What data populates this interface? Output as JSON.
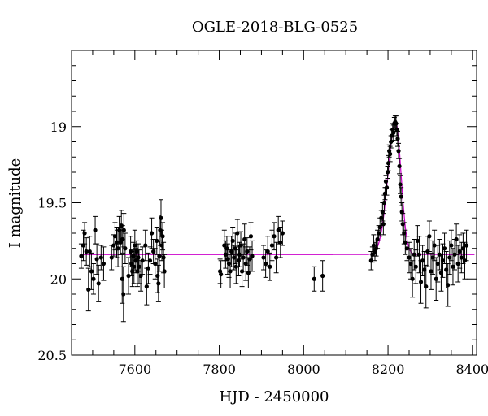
{
  "chart_data": {
    "type": "scatter",
    "title": "OGLE-2018-BLG-0525",
    "xlabel": "HJD - 2450000",
    "ylabel": "I magnitude",
    "xlim": [
      7450,
      8410
    ],
    "ylim": [
      18.5,
      20.5
    ],
    "y_inverted": true,
    "grid": false,
    "x_ticks": [
      7600,
      7800,
      8000,
      8200,
      8400
    ],
    "x_tick_labels": [
      "7600",
      "7800",
      "8000",
      "8200",
      "8400"
    ],
    "y_ticks": [
      19,
      19.5,
      20,
      20.5
    ],
    "y_tick_labels": [
      "19",
      "19.5",
      "20",
      "20.5"
    ],
    "colors": {
      "points": "#000000",
      "model": "#cc00cc"
    },
    "model": {
      "baseline": 19.84,
      "peak_time": 8218,
      "peak_mag": 18.97,
      "rise_width": 18,
      "fall_width": 13
    },
    "series": [
      {
        "values": [
          {
            "x": 7473,
            "y": 19.85,
            "e": 0.08
          },
          {
            "x": 7478,
            "y": 19.78,
            "e": 0.1
          },
          {
            "x": 7481,
            "y": 19.7,
            "e": 0.07
          },
          {
            "x": 7485,
            "y": 19.82,
            "e": 0.09
          },
          {
            "x": 7490,
            "y": 20.07,
            "e": 0.14
          },
          {
            "x": 7493,
            "y": 19.82,
            "e": 0.1
          },
          {
            "x": 7497,
            "y": 19.95,
            "e": 0.12
          },
          {
            "x": 7502,
            "y": 20.0,
            "e": 0.1
          },
          {
            "x": 7506,
            "y": 19.68,
            "e": 0.09
          },
          {
            "x": 7510,
            "y": 19.87,
            "e": 0.1
          },
          {
            "x": 7514,
            "y": 20.03,
            "e": 0.12
          },
          {
            "x": 7520,
            "y": 19.86,
            "e": 0.08
          },
          {
            "x": 7526,
            "y": 19.9,
            "e": 0.11
          },
          {
            "x": 7545,
            "y": 19.86,
            "e": 0.08
          },
          {
            "x": 7550,
            "y": 19.78,
            "e": 0.07
          },
          {
            "x": 7553,
            "y": 19.72,
            "e": 0.09
          },
          {
            "x": 7557,
            "y": 19.76,
            "e": 0.1
          },
          {
            "x": 7560,
            "y": 19.8,
            "e": 0.12
          },
          {
            "x": 7563,
            "y": 19.68,
            "e": 0.09
          },
          {
            "x": 7566,
            "y": 19.76,
            "e": 0.08
          },
          {
            "x": 7568,
            "y": 19.65,
            "e": 0.1
          },
          {
            "x": 7571,
            "y": 19.74,
            "e": 0.09
          },
          {
            "x": 7574,
            "y": 19.68,
            "e": 0.11
          },
          {
            "x": 7577,
            "y": 19.8,
            "e": 0.1
          },
          {
            "x": 7570,
            "y": 20.0,
            "e": 0.16
          },
          {
            "x": 7573,
            "y": 20.1,
            "e": 0.18
          },
          {
            "x": 7585,
            "y": 19.98,
            "e": 0.12
          },
          {
            "x": 7590,
            "y": 19.82,
            "e": 0.1
          },
          {
            "x": 7592,
            "y": 19.9,
            "e": 0.08
          },
          {
            "x": 7594,
            "y": 19.95,
            "e": 0.1
          },
          {
            "x": 7596,
            "y": 19.85,
            "e": 0.09
          },
          {
            "x": 7598,
            "y": 19.92,
            "e": 0.11
          },
          {
            "x": 7600,
            "y": 19.78,
            "e": 0.1
          },
          {
            "x": 7602,
            "y": 19.88,
            "e": 0.08
          },
          {
            "x": 7604,
            "y": 19.82,
            "e": 0.07
          },
          {
            "x": 7606,
            "y": 19.95,
            "e": 0.1
          },
          {
            "x": 7608,
            "y": 19.86,
            "e": 0.09
          },
          {
            "x": 7610,
            "y": 19.92,
            "e": 0.11
          },
          {
            "x": 7614,
            "y": 19.98,
            "e": 0.1
          },
          {
            "x": 7618,
            "y": 19.88,
            "e": 0.09
          },
          {
            "x": 7625,
            "y": 19.78,
            "e": 0.1
          },
          {
            "x": 7628,
            "y": 20.05,
            "e": 0.12
          },
          {
            "x": 7632,
            "y": 19.93,
            "e": 0.1
          },
          {
            "x": 7636,
            "y": 19.88,
            "e": 0.09
          },
          {
            "x": 7640,
            "y": 19.7,
            "e": 0.1
          },
          {
            "x": 7644,
            "y": 19.82,
            "e": 0.08
          },
          {
            "x": 7648,
            "y": 19.9,
            "e": 0.1
          },
          {
            "x": 7652,
            "y": 19.75,
            "e": 0.09
          },
          {
            "x": 7654,
            "y": 19.98,
            "e": 0.11
          },
          {
            "x": 7656,
            "y": 20.03,
            "e": 0.12
          },
          {
            "x": 7658,
            "y": 19.85,
            "e": 0.1
          },
          {
            "x": 7660,
            "y": 19.68,
            "e": 0.1
          },
          {
            "x": 7662,
            "y": 19.6,
            "e": 0.12
          },
          {
            "x": 7664,
            "y": 19.78,
            "e": 0.1
          },
          {
            "x": 7666,
            "y": 19.72,
            "e": 0.09
          },
          {
            "x": 7668,
            "y": 19.86,
            "e": 0.1
          },
          {
            "x": 7670,
            "y": 19.95,
            "e": 0.11
          },
          {
            "x": 7802,
            "y": 19.95,
            "e": 0.08
          },
          {
            "x": 7804,
            "y": 19.97,
            "e": 0.09
          },
          {
            "x": 7812,
            "y": 19.78,
            "e": 0.1
          },
          {
            "x": 7815,
            "y": 19.84,
            "e": 0.09
          },
          {
            "x": 7818,
            "y": 19.8,
            "e": 0.08
          },
          {
            "x": 7820,
            "y": 19.87,
            "e": 0.1
          },
          {
            "x": 7823,
            "y": 19.9,
            "e": 0.09
          },
          {
            "x": 7826,
            "y": 19.95,
            "e": 0.11
          },
          {
            "x": 7829,
            "y": 19.82,
            "e": 0.1
          },
          {
            "x": 7832,
            "y": 19.75,
            "e": 0.09
          },
          {
            "x": 7835,
            "y": 19.86,
            "e": 0.08
          },
          {
            "x": 7838,
            "y": 19.8,
            "e": 0.1
          },
          {
            "x": 7840,
            "y": 19.92,
            "e": 0.11
          },
          {
            "x": 7843,
            "y": 19.7,
            "e": 0.09
          },
          {
            "x": 7846,
            "y": 19.88,
            "e": 0.1
          },
          {
            "x": 7848,
            "y": 19.84,
            "e": 0.08
          },
          {
            "x": 7851,
            "y": 19.78,
            "e": 0.09
          },
          {
            "x": 7854,
            "y": 19.95,
            "e": 0.1
          },
          {
            "x": 7857,
            "y": 19.86,
            "e": 0.09
          },
          {
            "x": 7860,
            "y": 19.74,
            "e": 0.1
          },
          {
            "x": 7863,
            "y": 19.9,
            "e": 0.11
          },
          {
            "x": 7866,
            "y": 19.82,
            "e": 0.09
          },
          {
            "x": 7869,
            "y": 19.96,
            "e": 0.1
          },
          {
            "x": 7872,
            "y": 19.87,
            "e": 0.08
          },
          {
            "x": 7875,
            "y": 19.72,
            "e": 0.09
          },
          {
            "x": 7878,
            "y": 19.85,
            "e": 0.1
          },
          {
            "x": 7905,
            "y": 19.86,
            "e": 0.08
          },
          {
            "x": 7910,
            "y": 19.9,
            "e": 0.09
          },
          {
            "x": 7915,
            "y": 19.82,
            "e": 0.1
          },
          {
            "x": 7920,
            "y": 19.92,
            "e": 0.09
          },
          {
            "x": 7925,
            "y": 19.78,
            "e": 0.1
          },
          {
            "x": 7930,
            "y": 19.72,
            "e": 0.09
          },
          {
            "x": 7935,
            "y": 19.86,
            "e": 0.1
          },
          {
            "x": 7940,
            "y": 19.68,
            "e": 0.09
          },
          {
            "x": 7945,
            "y": 19.76,
            "e": 0.1
          },
          {
            "x": 7950,
            "y": 19.7,
            "e": 0.08
          },
          {
            "x": 8025,
            "y": 20.0,
            "e": 0.08
          },
          {
            "x": 8045,
            "y": 19.98,
            "e": 0.1
          },
          {
            "x": 8160,
            "y": 19.88,
            "e": 0.06
          },
          {
            "x": 8163,
            "y": 19.84,
            "e": 0.05
          },
          {
            "x": 8166,
            "y": 19.78,
            "e": 0.07
          },
          {
            "x": 8169,
            "y": 19.82,
            "e": 0.06
          },
          {
            "x": 8172,
            "y": 19.8,
            "e": 0.05
          },
          {
            "x": 8175,
            "y": 19.74,
            "e": 0.06
          },
          {
            "x": 8178,
            "y": 19.7,
            "e": 0.05
          },
          {
            "x": 8181,
            "y": 19.66,
            "e": 0.06
          },
          {
            "x": 8184,
            "y": 19.6,
            "e": 0.05
          },
          {
            "x": 8187,
            "y": 19.56,
            "e": 0.06
          },
          {
            "x": 8189,
            "y": 19.64,
            "e": 0.07
          },
          {
            "x": 8191,
            "y": 19.5,
            "e": 0.05
          },
          {
            "x": 8193,
            "y": 19.44,
            "e": 0.04
          },
          {
            "x": 8195,
            "y": 19.36,
            "e": 0.04
          },
          {
            "x": 8197,
            "y": 19.4,
            "e": 0.05
          },
          {
            "x": 8199,
            "y": 19.3,
            "e": 0.04
          },
          {
            "x": 8201,
            "y": 19.24,
            "e": 0.05
          },
          {
            "x": 8203,
            "y": 19.16,
            "e": 0.04
          },
          {
            "x": 8205,
            "y": 19.18,
            "e": 0.05
          },
          {
            "x": 8207,
            "y": 19.1,
            "e": 0.04
          },
          {
            "x": 8209,
            "y": 19.06,
            "e": 0.04
          },
          {
            "x": 8211,
            "y": 19.02,
            "e": 0.04
          },
          {
            "x": 8213,
            "y": 19.04,
            "e": 0.05
          },
          {
            "x": 8215,
            "y": 18.98,
            "e": 0.04
          },
          {
            "x": 8217,
            "y": 18.97,
            "e": 0.04
          },
          {
            "x": 8219,
            "y": 18.98,
            "e": 0.05
          },
          {
            "x": 8221,
            "y": 19.02,
            "e": 0.04
          },
          {
            "x": 8223,
            "y": 19.08,
            "e": 0.05
          },
          {
            "x": 8225,
            "y": 19.16,
            "e": 0.05
          },
          {
            "x": 8227,
            "y": 19.26,
            "e": 0.05
          },
          {
            "x": 8229,
            "y": 19.38,
            "e": 0.06
          },
          {
            "x": 8231,
            "y": 19.46,
            "e": 0.06
          },
          {
            "x": 8233,
            "y": 19.56,
            "e": 0.06
          },
          {
            "x": 8235,
            "y": 19.64,
            "e": 0.07
          },
          {
            "x": 8238,
            "y": 19.7,
            "e": 0.07
          },
          {
            "x": 8241,
            "y": 19.76,
            "e": 0.08
          },
          {
            "x": 8245,
            "y": 19.8,
            "e": 0.08
          },
          {
            "x": 8250,
            "y": 19.86,
            "e": 0.1
          },
          {
            "x": 8254,
            "y": 19.9,
            "e": 0.1
          },
          {
            "x": 8258,
            "y": 20.0,
            "e": 0.12
          },
          {
            "x": 8262,
            "y": 19.84,
            "e": 0.1
          },
          {
            "x": 8266,
            "y": 19.92,
            "e": 0.11
          },
          {
            "x": 8270,
            "y": 19.75,
            "e": 0.1
          },
          {
            "x": 8274,
            "y": 19.84,
            "e": 0.12
          },
          {
            "x": 8278,
            "y": 20.02,
            "e": 0.14
          },
          {
            "x": 8282,
            "y": 19.88,
            "e": 0.1
          },
          {
            "x": 8286,
            "y": 19.94,
            "e": 0.12
          },
          {
            "x": 8290,
            "y": 20.05,
            "e": 0.14
          },
          {
            "x": 8294,
            "y": 19.82,
            "e": 0.1
          },
          {
            "x": 8298,
            "y": 19.72,
            "e": 0.1
          },
          {
            "x": 8302,
            "y": 19.95,
            "e": 0.12
          },
          {
            "x": 8306,
            "y": 19.86,
            "e": 0.11
          },
          {
            "x": 8310,
            "y": 19.78,
            "e": 0.1
          },
          {
            "x": 8314,
            "y": 20.0,
            "e": 0.14
          },
          {
            "x": 8318,
            "y": 19.9,
            "e": 0.12
          },
          {
            "x": 8322,
            "y": 19.84,
            "e": 0.1
          },
          {
            "x": 8326,
            "y": 19.96,
            "e": 0.12
          },
          {
            "x": 8330,
            "y": 19.88,
            "e": 0.11
          },
          {
            "x": 8334,
            "y": 19.8,
            "e": 0.1
          },
          {
            "x": 8338,
            "y": 19.94,
            "e": 0.12
          },
          {
            "x": 8342,
            "y": 20.04,
            "e": 0.14
          },
          {
            "x": 8346,
            "y": 19.86,
            "e": 0.11
          },
          {
            "x": 8350,
            "y": 19.78,
            "e": 0.1
          },
          {
            "x": 8354,
            "y": 19.92,
            "e": 0.12
          },
          {
            "x": 8358,
            "y": 19.84,
            "e": 0.1
          },
          {
            "x": 8362,
            "y": 19.74,
            "e": 0.1
          },
          {
            "x": 8366,
            "y": 19.9,
            "e": 0.12
          },
          {
            "x": 8370,
            "y": 19.82,
            "e": 0.11
          },
          {
            "x": 8374,
            "y": 19.86,
            "e": 0.1
          },
          {
            "x": 8378,
            "y": 19.8,
            "e": 0.1
          },
          {
            "x": 8382,
            "y": 19.88,
            "e": 0.12
          },
          {
            "x": 8386,
            "y": 19.78,
            "e": 0.1
          }
        ]
      }
    ]
  }
}
